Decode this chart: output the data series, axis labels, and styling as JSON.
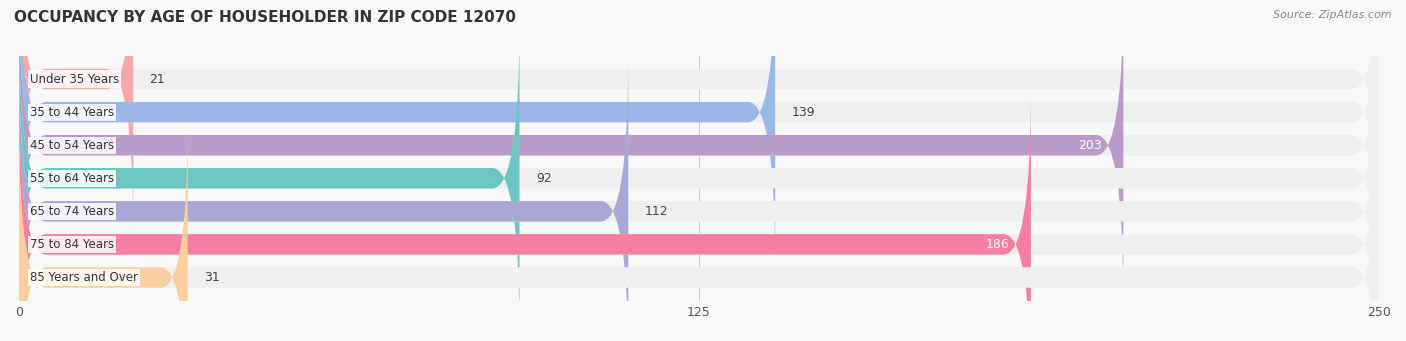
{
  "title": "OCCUPANCY BY AGE OF HOUSEHOLDER IN ZIP CODE 12070",
  "source": "Source: ZipAtlas.com",
  "categories": [
    "Under 35 Years",
    "35 to 44 Years",
    "45 to 54 Years",
    "55 to 64 Years",
    "65 to 74 Years",
    "75 to 84 Years",
    "85 Years and Over"
  ],
  "values": [
    21,
    139,
    203,
    92,
    112,
    186,
    31
  ],
  "bar_colors": [
    "#F4A9A8",
    "#9BB7E8",
    "#B89CC8",
    "#6DC5C0",
    "#A9A8D4",
    "#F47FA0",
    "#F9CFA0"
  ],
  "bar_bg_color": "#EFEFEF",
  "xlim": [
    0,
    250
  ],
  "xticks": [
    0,
    125,
    250
  ],
  "figsize": [
    14.06,
    3.41
  ],
  "dpi": 100,
  "title_fontsize": 11,
  "bar_height": 0.62,
  "bar_label_fontsize": 9,
  "category_fontsize": 8.5,
  "source_fontsize": 8,
  "value_inside_threshold": 180
}
